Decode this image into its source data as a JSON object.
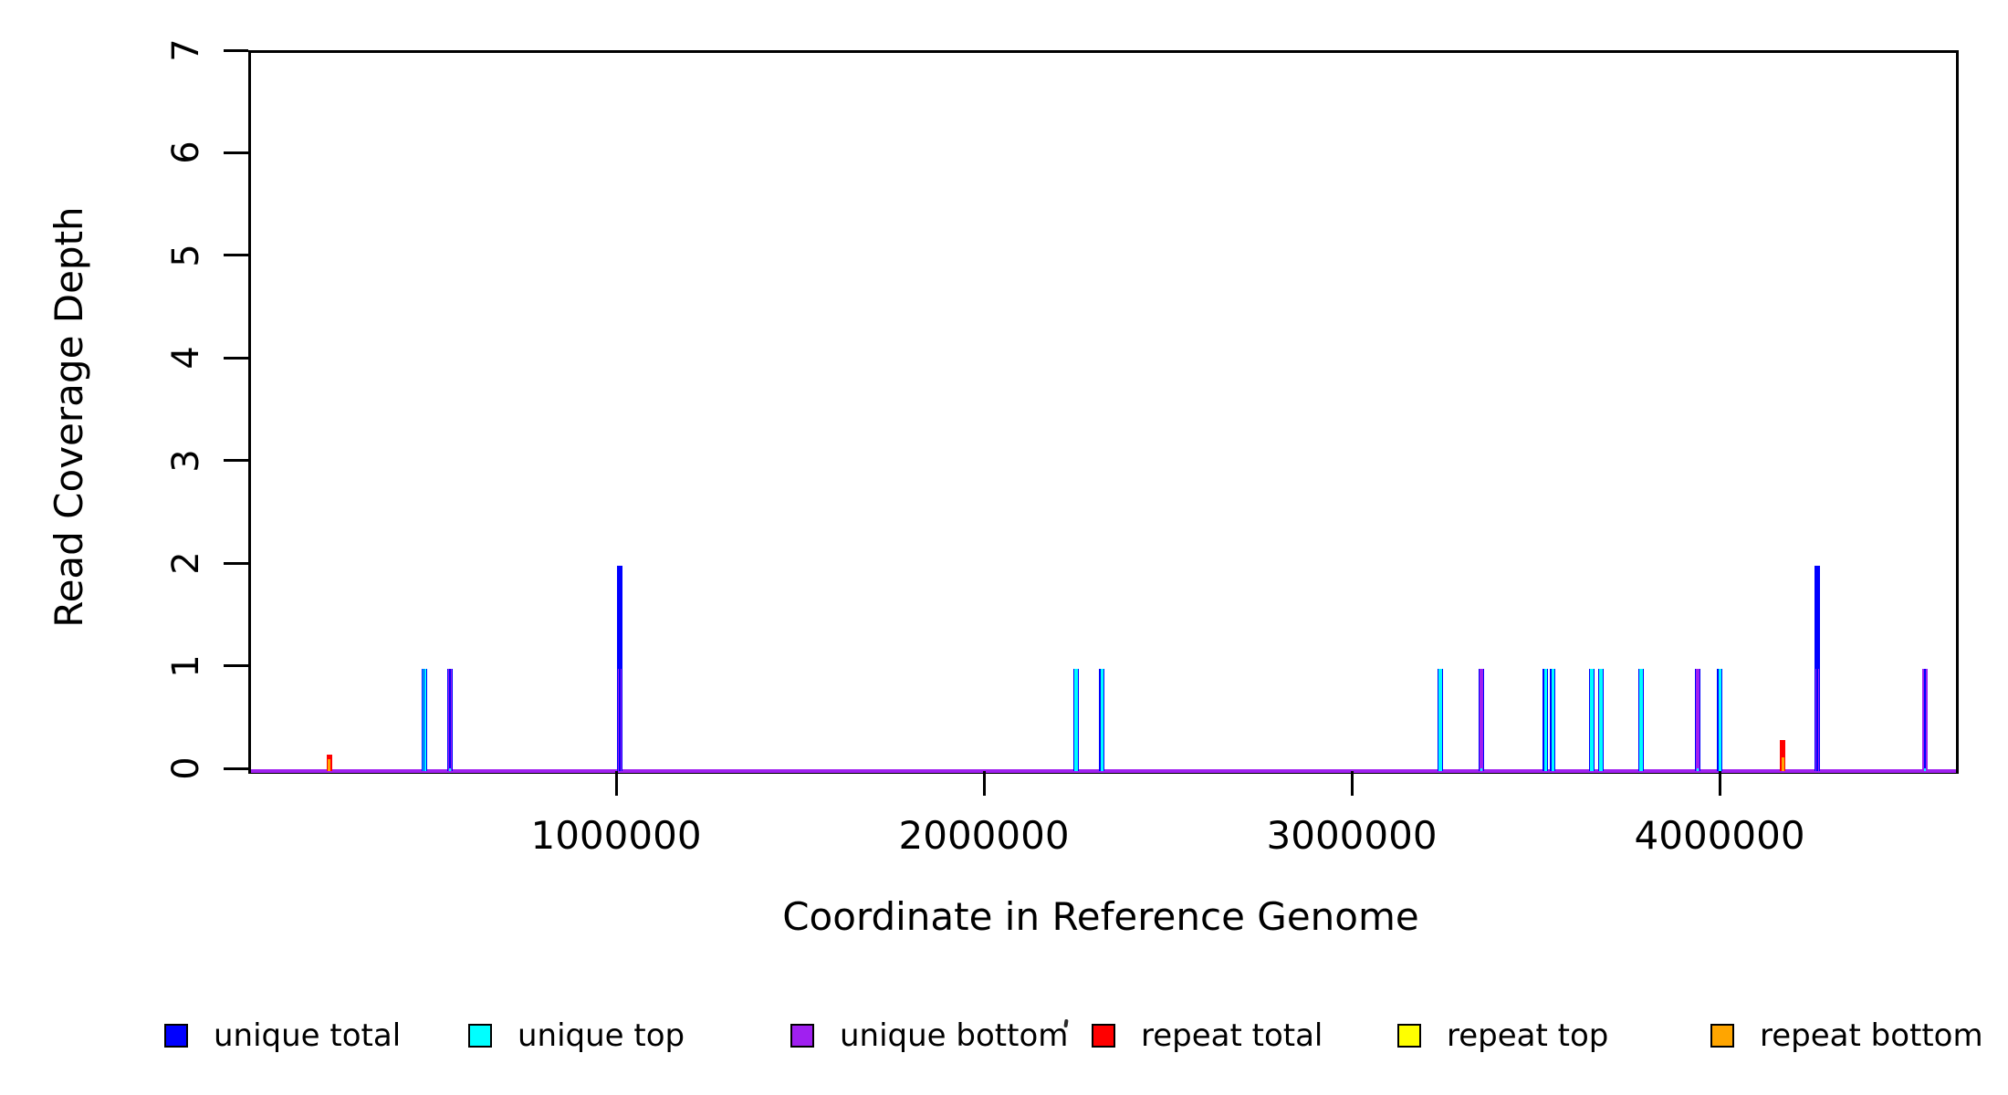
{
  "chart_data": {
    "type": "bar",
    "title": "",
    "xlabel": "Coordinate in Reference Genome",
    "ylabel": "Read Coverage Depth",
    "xlim": [
      0,
      4635000
    ],
    "ylim": [
      0,
      7
    ],
    "grid": false,
    "frame": "full-box",
    "xticks": [
      1000000,
      2000000,
      3000000,
      4000000
    ],
    "xtick_labels": [
      "1000000",
      "2000000",
      "3000000",
      "4000000"
    ],
    "yticks": [
      0,
      1,
      2,
      3,
      4,
      5,
      6,
      7
    ],
    "ytick_labels": [
      "0",
      "1",
      "2",
      "3",
      "4",
      "5",
      "6",
      "7"
    ],
    "colors": {
      "unique_total": "#0000FF",
      "unique_top": "#00FFFF",
      "unique_bottom": "#A020F0",
      "repeat_total": "#FF0000",
      "repeat_top": "#FFFF00",
      "repeat_bottom": "#FFA500"
    },
    "baseline_series": "unique_bottom",
    "legend": {
      "position": "bottom-horizontal",
      "items": [
        {
          "label": "unique total",
          "series": "unique_total"
        },
        {
          "label": "unique top",
          "series": "unique_top"
        },
        {
          "label": "unique bottom",
          "series": "unique_bottom"
        },
        {
          "label": "repeat total",
          "series": "repeat_total"
        },
        {
          "label": "repeat top",
          "series": "repeat_top"
        },
        {
          "label": "repeat bottom",
          "series": "repeat_bottom"
        }
      ]
    },
    "spikes": [
      {
        "x": 213000,
        "segments": [
          {
            "series": "repeat_total",
            "depth": 0.16,
            "lw": 6
          },
          {
            "series": "repeat_bottom",
            "depth": 0.115,
            "lw": 3
          }
        ]
      },
      {
        "x": 471000,
        "segments": [
          {
            "series": "unique_total",
            "depth": 1,
            "lw": 6
          },
          {
            "series": "unique_top",
            "depth": 1,
            "lw": 3.6
          },
          {
            "series": "unique_total",
            "depth": 1,
            "lw": 1.2
          }
        ]
      },
      {
        "x": 541000,
        "segments": [
          {
            "series": "unique_total",
            "depth": 1,
            "lw": 6
          },
          {
            "series": "unique_bottom",
            "depth": 1,
            "lw": 3.6
          },
          {
            "series": "unique_total",
            "depth": 1,
            "lw": 1.2
          },
          {
            "series": "unique_top",
            "depth": 0.03,
            "lw": 2.4
          }
        ]
      },
      {
        "x": 1002000,
        "segments": [
          {
            "series": "unique_total",
            "depth": 2,
            "lw": 6
          },
          {
            "series": "unique_bottom",
            "depth": 1,
            "lw": 4.2
          },
          {
            "series": "unique_total",
            "depth": 1,
            "lw": 1.4
          }
        ]
      },
      {
        "x": 2243000,
        "segments": [
          {
            "series": "unique_total",
            "depth": 1,
            "lw": 6
          },
          {
            "series": "unique_top",
            "depth": 1,
            "lw": 3.2
          }
        ]
      },
      {
        "x": 2313000,
        "segments": [
          {
            "series": "unique_total",
            "depth": 1,
            "lw": 6
          },
          {
            "series": "unique_top",
            "depth": 1,
            "lw": 3.2
          }
        ]
      },
      {
        "x": 3233000,
        "segments": [
          {
            "series": "unique_total",
            "depth": 1,
            "lw": 6
          },
          {
            "series": "unique_top",
            "depth": 1,
            "lw": 3.2
          }
        ]
      },
      {
        "x": 3345000,
        "segments": [
          {
            "series": "unique_total",
            "depth": 1,
            "lw": 6
          },
          {
            "series": "unique_bottom",
            "depth": 1,
            "lw": 3.4
          },
          {
            "series": "unique_top",
            "depth": 0.03,
            "lw": 2.4
          }
        ]
      },
      {
        "x": 3519000,
        "segments": [
          {
            "series": "unique_total",
            "depth": 1,
            "lw": 6
          },
          {
            "series": "unique_top",
            "depth": 1,
            "lw": 3.2
          }
        ]
      },
      {
        "x": 3539000,
        "segments": [
          {
            "series": "unique_total",
            "depth": 1,
            "lw": 6
          },
          {
            "series": "unique_top",
            "depth": 1,
            "lw": 3.2
          }
        ]
      },
      {
        "x": 3645000,
        "segments": [
          {
            "series": "unique_total",
            "depth": 1,
            "lw": 6
          },
          {
            "series": "unique_top",
            "depth": 1,
            "lw": 3.2
          }
        ]
      },
      {
        "x": 3670000,
        "segments": [
          {
            "series": "unique_total",
            "depth": 1,
            "lw": 6
          },
          {
            "series": "unique_top",
            "depth": 1,
            "lw": 3.2
          }
        ]
      },
      {
        "x": 3779000,
        "segments": [
          {
            "series": "unique_total",
            "depth": 1,
            "lw": 6
          },
          {
            "series": "unique_top",
            "depth": 1,
            "lw": 3.2
          }
        ]
      },
      {
        "x": 3933000,
        "segments": [
          {
            "series": "unique_total",
            "depth": 1,
            "lw": 6
          },
          {
            "series": "unique_bottom",
            "depth": 1,
            "lw": 3.4
          },
          {
            "series": "unique_top",
            "depth": 0.03,
            "lw": 2.4
          }
        ]
      },
      {
        "x": 3993000,
        "segments": [
          {
            "series": "unique_total",
            "depth": 1,
            "lw": 6
          },
          {
            "series": "unique_top",
            "depth": 1,
            "lw": 3.2
          }
        ]
      },
      {
        "x": 4164000,
        "segments": [
          {
            "series": "repeat_total",
            "depth": 0.3,
            "lw": 6
          },
          {
            "series": "repeat_bottom",
            "depth": 0.13,
            "lw": 3
          }
        ]
      },
      {
        "x": 4258000,
        "segments": [
          {
            "series": "unique_total",
            "depth": 2,
            "lw": 6
          },
          {
            "series": "unique_bottom",
            "depth": 1,
            "lw": 4.2
          },
          {
            "series": "unique_total",
            "depth": 1,
            "lw": 1.4
          }
        ]
      },
      {
        "x": 4551000,
        "segments": [
          {
            "series": "unique_bottom",
            "depth": 1,
            "lw": 6
          },
          {
            "series": "unique_total",
            "depth": 1,
            "lw": 2.2
          },
          {
            "series": "unique_top",
            "depth": 0.03,
            "lw": 2.4
          }
        ]
      }
    ]
  }
}
